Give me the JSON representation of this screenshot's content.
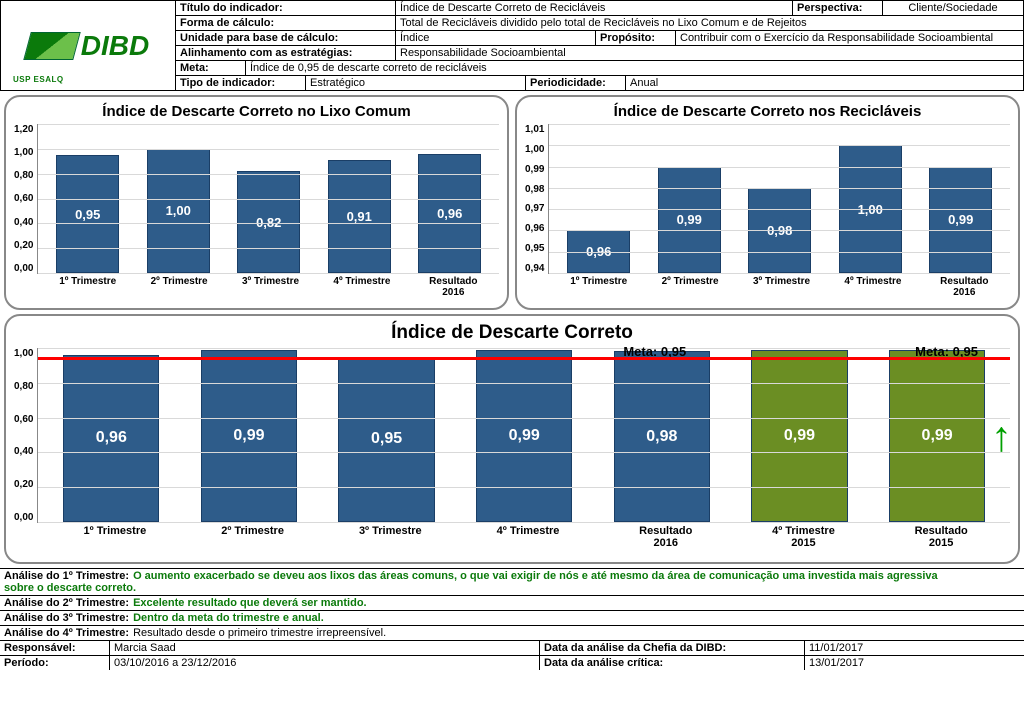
{
  "header": {
    "logo": {
      "text": "DIBD",
      "subtitle": "USP ESALQ"
    },
    "rows": {
      "titulo": {
        "label": "Título do indicador:",
        "value": "Índice de Descarte Correto de Recicláveis",
        "perspectiva_label": "Perspectiva:",
        "perspectiva_value": "Cliente/Sociedade"
      },
      "forma": {
        "label": "Forma de cálculo:",
        "value": "Total de Recicláveis dividido pelo total de Recicláveis no Lixo Comum e de Rejeitos"
      },
      "unidade": {
        "label": "Unidade para base de cálculo:",
        "value": "Índice",
        "proposito_label": "Propósito:",
        "proposito_value": "Contribuir com o Exercício da Responsabilidade Socioambiental"
      },
      "alinhamento": {
        "label": "Alinhamento com as estratégias:",
        "value": "Responsabilidade Socioambiental"
      },
      "meta": {
        "label": "Meta:",
        "value": "Índice de 0,95 de descarte correto de recicláveis"
      },
      "tipo": {
        "label": "Tipo de indicador:",
        "value": "Estratégico",
        "periodicidade_label": "Periodicidade:",
        "periodicidade_value": "Anual"
      }
    }
  },
  "colors": {
    "bar_blue": "#2e5c8a",
    "bar_blue_border": "#1a3e66",
    "bar_green": "#6b8e23",
    "grid": "#d9d9d9",
    "meta_line": "#ff0000",
    "arrow": "#00a000",
    "text_green": "#0b7a0b"
  },
  "chart1": {
    "title": "Índice de Descarte Correto no Lixo Comum",
    "type": "bar",
    "ylim": [
      0.0,
      1.2
    ],
    "ytick_step": 0.2,
    "yticks": [
      "1,20",
      "1,00",
      "0,80",
      "0,60",
      "0,40",
      "0,20",
      "0,00"
    ],
    "categories": [
      "1º Trimestre",
      "2º Trimestre",
      "3º Trimestre",
      "4º Trimestre",
      "Resultado 2016"
    ],
    "values": [
      0.95,
      1.0,
      0.82,
      0.91,
      0.96
    ],
    "value_labels": [
      "0,95",
      "1,00",
      "0,82",
      "0,91",
      "0,96"
    ],
    "bar_color": "#2e5c8a"
  },
  "chart2": {
    "title": "Índice de Descarte Correto nos Recicláveis",
    "type": "bar",
    "ylim": [
      0.94,
      1.01
    ],
    "ytick_step": 0.01,
    "yticks": [
      "1,01",
      "1,00",
      "0,99",
      "0,98",
      "0,97",
      "0,96",
      "0,95",
      "0,94"
    ],
    "categories": [
      "1º Trimestre",
      "2º Trimestre",
      "3º Trimestre",
      "4º Trimestre",
      "Resultado 2016"
    ],
    "values": [
      0.96,
      0.99,
      0.98,
      1.0,
      0.99
    ],
    "value_labels": [
      "0,96",
      "0,99",
      "0,98",
      "1,00",
      "0,99"
    ],
    "bar_color": "#2e5c8a"
  },
  "chart3": {
    "title": "Índice de Descarte Correto",
    "type": "bar",
    "ylim": [
      0.0,
      1.0
    ],
    "ytick_step": 0.2,
    "yticks": [
      "1,00",
      "0,80",
      "0,60",
      "0,40",
      "0,20",
      "0,00"
    ],
    "categories": [
      "1º Trimestre",
      "2º Trimestre",
      "3º Trimestre",
      "4º Trimestre",
      "Resultado 2016",
      "4º Trimestre 2015",
      "Resultado 2015"
    ],
    "values": [
      0.96,
      0.99,
      0.95,
      0.99,
      0.98,
      0.99,
      0.99
    ],
    "value_labels": [
      "0,96",
      "0,99",
      "0,95",
      "0,99",
      "0,98",
      "0,99",
      "0,99"
    ],
    "bar_colors": [
      "#2e5c8a",
      "#2e5c8a",
      "#2e5c8a",
      "#2e5c8a",
      "#2e5c8a",
      "#6b8e23",
      "#6b8e23"
    ],
    "meta_value": 0.95,
    "meta_label1": "Meta: 0,95",
    "meta_label2": "Meta: 0,95"
  },
  "analysis": {
    "t1": {
      "label": "Análise do 1º Trimestre:",
      "text": "O aumento exacerbado se deveu aos lixos das áreas comuns, o que vai exigir de nós e até mesmo da área de comunicação uma investida mais agressiva",
      "text2": "sobre o descarte correto."
    },
    "t2": {
      "label": "Análise do 2º Trimestre:",
      "text": "Excelente resultado que deverá ser  mantido."
    },
    "t3": {
      "label": "Análise do 3º Trimestre:",
      "text": "Dentro da meta do trimestre e anual."
    },
    "t4": {
      "label": "Análise do 4º Trimestre:",
      "text": "Resultado desde o primeiro trimestre irrepreensível."
    }
  },
  "footer": {
    "responsavel_label": "Responsável:",
    "responsavel_value": "Marcia Saad",
    "data_chefia_label": "Data da análise da Chefia da DIBD:",
    "data_chefia_value": "11/01/2017",
    "periodo_label": "Período:",
    "periodo_value": "03/10/2016 a 23/12/2016",
    "data_critica_label": "Data da análise crítica:",
    "data_critica_value": "13/01/2017"
  }
}
